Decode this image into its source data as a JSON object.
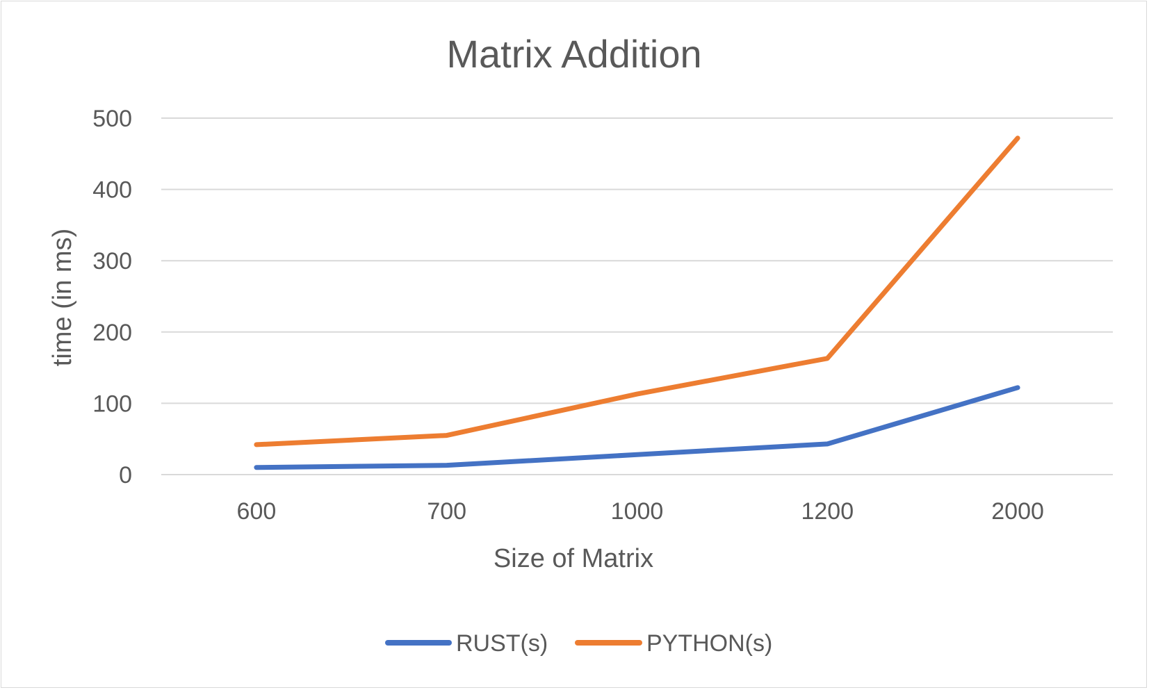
{
  "chart_data": {
    "type": "line",
    "title": "Matrix Addition",
    "xlabel": "Size of Matrix",
    "ylabel": "time (in ms)",
    "categories": [
      "600",
      "700",
      "1000",
      "1200",
      "2000"
    ],
    "ylim": [
      0,
      500
    ],
    "yticks": [
      "0",
      "100",
      "200",
      "300",
      "400",
      "500"
    ],
    "grid": true,
    "legend_position": "bottom",
    "series": [
      {
        "name": "RUST(s)",
        "color": "#4472C4",
        "values": [
          10,
          13,
          28,
          43,
          122
        ]
      },
      {
        "name": "PYTHON(s)",
        "color": "#ED7D31",
        "values": [
          42,
          55,
          113,
          163,
          472
        ]
      }
    ]
  }
}
